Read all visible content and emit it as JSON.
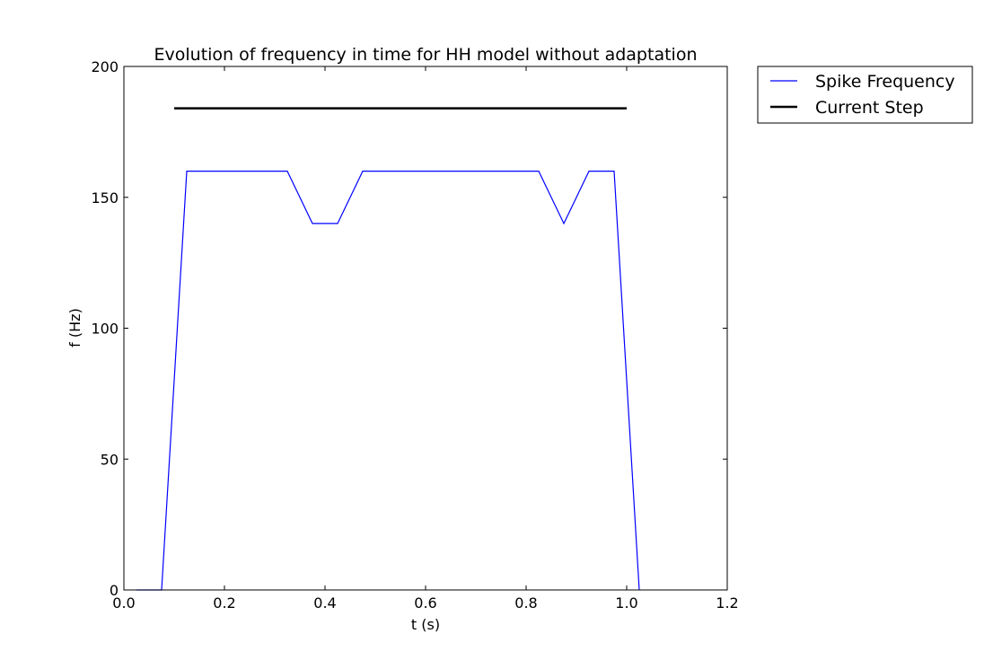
{
  "chart_data": {
    "type": "line",
    "title": "Evolution of frequency in time for HH model without adaptation",
    "xlabel": "t (s)",
    "ylabel": "f (Hz)",
    "xlim": [
      0.0,
      1.2
    ],
    "ylim": [
      0,
      200
    ],
    "x_ticks": [
      "0.0",
      "0.2",
      "0.4",
      "0.6",
      "0.8",
      "1.0",
      "1.2"
    ],
    "y_ticks": [
      "0",
      "50",
      "100",
      "150",
      "200"
    ],
    "grid": false,
    "legend_position": "outside-top-right",
    "series": [
      {
        "name": "Spike Frequency",
        "color": "#0000ff",
        "x": [
          0.025,
          0.075,
          0.125,
          0.175,
          0.225,
          0.275,
          0.325,
          0.375,
          0.425,
          0.475,
          0.525,
          0.575,
          0.625,
          0.675,
          0.725,
          0.775,
          0.825,
          0.875,
          0.925,
          0.975,
          1.025
        ],
        "y": [
          0,
          0,
          160,
          160,
          160,
          160,
          160,
          140,
          140,
          160,
          160,
          160,
          160,
          160,
          160,
          160,
          160,
          140,
          160,
          160,
          0
        ]
      },
      {
        "name": "Current Step",
        "color": "#000000",
        "x": [
          0.1,
          1.0
        ],
        "y": [
          184,
          184
        ]
      }
    ]
  }
}
